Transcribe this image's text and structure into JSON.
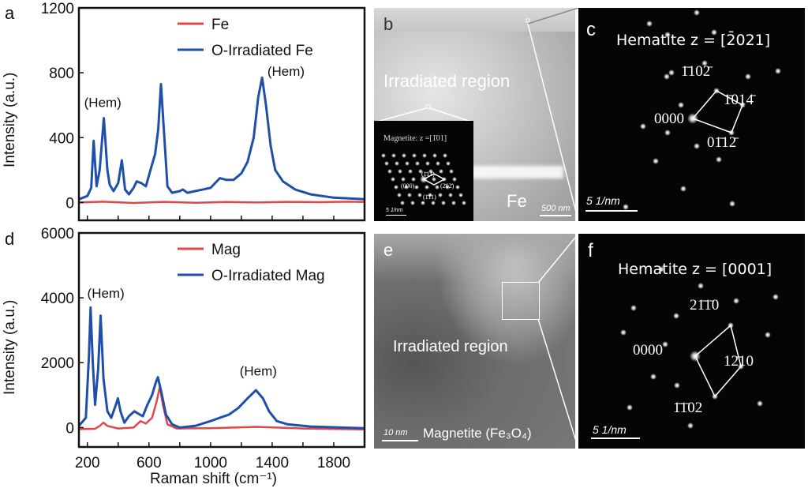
{
  "panels": {
    "a": {
      "letter": "a"
    },
    "b": {
      "letter": "b",
      "region_label": "Irradiated region",
      "fe_label": "Fe",
      "scale_bar": "500 nm",
      "inset": {
        "title": "Magnetite: z =[1̄01]",
        "spots": [
          "(1̄11̄)",
          "(000)",
          "(2̄02̄)",
          "(1̄1̄1)"
        ],
        "scale_bar": "5 1/nm"
      }
    },
    "c": {
      "letter": "c",
      "title": "Hematite z = [2̄021]",
      "spots": [
        "1̄102̄",
        "1̄014̄",
        "0000",
        "01̄12̄"
      ],
      "scale_bar": "5 1/nm"
    },
    "d": {
      "letter": "d"
    },
    "e": {
      "letter": "e",
      "region_label": "Irradiated region",
      "material_label": "Magnetite (Fe₃O₄)",
      "scale_bar": "10 nm"
    },
    "f": {
      "letter": "f",
      "title": "Hematite z = [0001]",
      "spots": [
        "21̄1̄0",
        "0000",
        "12̄10",
        "1̄1̄02"
      ],
      "scale_bar": "5 1/nm"
    }
  },
  "colors": {
    "pristine": "#e04848",
    "irradiated": "#1f4fa8"
  },
  "chart_data": [
    {
      "type": "line",
      "panel": "a",
      "xlabel": "",
      "ylabel": "Intensity (a.u.)",
      "xlim": [
        145,
        2000
      ],
      "ylim": [
        -110,
        1200
      ],
      "xticks": [
        200,
        400,
        600,
        800,
        1000,
        1200,
        1400,
        1600,
        1800
      ],
      "xtick_labels_shown": false,
      "yticks": [
        0,
        400,
        800,
        1200
      ],
      "ytick_labels": [
        "0",
        "400",
        "800",
        "1200"
      ],
      "legend": "top-right",
      "annotations": [
        {
          "text": "(Hem)",
          "x": 300,
          "y": 590
        },
        {
          "text": "(Hem)",
          "x": 1490,
          "y": 780
        }
      ],
      "series": [
        {
          "name": "Fe",
          "color": "#e04848",
          "points": [
            [
              145,
              0
            ],
            [
              300,
              5
            ],
            [
              500,
              -3
            ],
            [
              700,
              4
            ],
            [
              900,
              -2
            ],
            [
              1100,
              3
            ],
            [
              1300,
              0
            ],
            [
              1500,
              4
            ],
            [
              1700,
              2
            ],
            [
              1900,
              5
            ],
            [
              2000,
              3
            ]
          ]
        },
        {
          "name": "O-Irradiated Fe",
          "color": "#1f4fa8",
          "points": [
            [
              145,
              20
            ],
            [
              200,
              40
            ],
            [
              225,
              90
            ],
            [
              241,
              380
            ],
            [
              260,
              100
            ],
            [
              280,
              200
            ],
            [
              307,
              520
            ],
            [
              330,
              200
            ],
            [
              345,
              110
            ],
            [
              370,
              70
            ],
            [
              400,
              120
            ],
            [
              424,
              260
            ],
            [
              445,
              80
            ],
            [
              470,
              50
            ],
            [
              500,
              90
            ],
            [
              520,
              130
            ],
            [
              550,
              120
            ],
            [
              580,
              100
            ],
            [
              610,
              200
            ],
            [
              640,
              300
            ],
            [
              660,
              450
            ],
            [
              678,
              730
            ],
            [
              700,
              400
            ],
            [
              720,
              100
            ],
            [
              750,
              60
            ],
            [
              800,
              70
            ],
            [
              820,
              80
            ],
            [
              850,
              60
            ],
            [
              900,
              70
            ],
            [
              1000,
              90
            ],
            [
              1060,
              150
            ],
            [
              1100,
              140
            ],
            [
              1150,
              140
            ],
            [
              1200,
              180
            ],
            [
              1240,
              250
            ],
            [
              1280,
              400
            ],
            [
              1310,
              650
            ],
            [
              1335,
              770
            ],
            [
              1360,
              600
            ],
            [
              1390,
              350
            ],
            [
              1420,
              200
            ],
            [
              1470,
              130
            ],
            [
              1550,
              80
            ],
            [
              1650,
              50
            ],
            [
              1800,
              30
            ],
            [
              2000,
              20
            ]
          ]
        }
      ]
    },
    {
      "type": "line",
      "panel": "d",
      "xlabel": "Raman shift (cm⁻¹)",
      "ylabel": "Intensity (a.u.)",
      "xlim": [
        145,
        2000
      ],
      "ylim": [
        -600,
        6000
      ],
      "xticks": [
        200,
        400,
        600,
        800,
        1000,
        1200,
        1400,
        1600,
        1800
      ],
      "xtick_labels": [
        "200",
        "",
        "600",
        "",
        "1000",
        "",
        "1400",
        "",
        "1800"
      ],
      "yticks": [
        0,
        2000,
        4000,
        6000
      ],
      "ytick_labels": [
        "0",
        "2000",
        "4000",
        "6000"
      ],
      "legend": "top-right",
      "annotations": [
        {
          "text": "(Hem)",
          "x": 320,
          "y": 4000
        },
        {
          "text": "(Hem)",
          "x": 1310,
          "y": 1600
        }
      ],
      "series": [
        {
          "name": "Mag",
          "color": "#e04848",
          "points": [
            [
              145,
              -50
            ],
            [
              250,
              -40
            ],
            [
              280,
              50
            ],
            [
              305,
              150
            ],
            [
              330,
              50
            ],
            [
              400,
              -30
            ],
            [
              500,
              0
            ],
            [
              545,
              200
            ],
            [
              580,
              120
            ],
            [
              620,
              300
            ],
            [
              650,
              800
            ],
            [
              670,
              1250
            ],
            [
              690,
              700
            ],
            [
              720,
              100
            ],
            [
              780,
              -30
            ],
            [
              1000,
              -20
            ],
            [
              1300,
              20
            ],
            [
              1600,
              -30
            ],
            [
              2000,
              -60
            ]
          ]
        },
        {
          "name": "O-Irradiated Mag",
          "color": "#1f4fa8",
          "points": [
            [
              145,
              50
            ],
            [
              190,
              300
            ],
            [
              210,
              2200
            ],
            [
              221,
              3700
            ],
            [
              235,
              2000
            ],
            [
              250,
              700
            ],
            [
              270,
              1800
            ],
            [
              286,
              3450
            ],
            [
              305,
              1500
            ],
            [
              330,
              500
            ],
            [
              355,
              300
            ],
            [
              385,
              700
            ],
            [
              398,
              900
            ],
            [
              415,
              500
            ],
            [
              440,
              150
            ],
            [
              470,
              350
            ],
            [
              505,
              500
            ],
            [
              540,
              400
            ],
            [
              560,
              350
            ],
            [
              590,
              700
            ],
            [
              620,
              1000
            ],
            [
              645,
              1400
            ],
            [
              658,
              1550
            ],
            [
              680,
              1100
            ],
            [
              710,
              400
            ],
            [
              750,
              100
            ],
            [
              800,
              0
            ],
            [
              900,
              50
            ],
            [
              1000,
              200
            ],
            [
              1060,
              300
            ],
            [
              1120,
              400
            ],
            [
              1180,
              600
            ],
            [
              1240,
              900
            ],
            [
              1295,
              1150
            ],
            [
              1340,
              900
            ],
            [
              1380,
              500
            ],
            [
              1430,
              200
            ],
            [
              1500,
              100
            ],
            [
              1650,
              30
            ],
            [
              2000,
              -20
            ]
          ]
        }
      ]
    }
  ]
}
